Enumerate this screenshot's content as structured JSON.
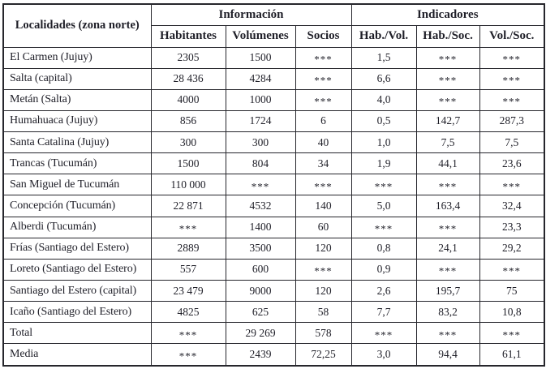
{
  "colors": {
    "background": "#ffffff",
    "text": "#1f1f28",
    "border": "#26262c"
  },
  "chart_data": {
    "type": "table",
    "row_header": "Localidades (zona norte)",
    "missing_marker": "***",
    "column_groups": [
      {
        "label": "Información",
        "columns": [
          "Habitantes",
          "Volúmenes",
          "Socios"
        ]
      },
      {
        "label": "Indicadores",
        "columns": [
          "Hab./Vol.",
          "Hab./Soc.",
          "Vol./Soc."
        ]
      }
    ],
    "rows": [
      {
        "name": "El Carmen (Jujuy)",
        "values": [
          "2305",
          "1500",
          "***",
          "1,5",
          "***",
          "***"
        ]
      },
      {
        "name": "Salta (capital)",
        "values": [
          "28 436",
          "4284",
          "***",
          "6,6",
          "***",
          "***"
        ]
      },
      {
        "name": "Metán (Salta)",
        "values": [
          "4000",
          "1000",
          "***",
          "4,0",
          "***",
          "***"
        ]
      },
      {
        "name": "Humahuaca (Jujuy)",
        "values": [
          "856",
          "1724",
          "6",
          "0,5",
          "142,7",
          "287,3"
        ]
      },
      {
        "name": "Santa Catalina (Jujuy)",
        "values": [
          "300",
          "300",
          "40",
          "1,0",
          "7,5",
          "7,5"
        ]
      },
      {
        "name": "Trancas (Tucumán)",
        "values": [
          "1500",
          "804",
          "34",
          "1,9",
          "44,1",
          "23,6"
        ]
      },
      {
        "name": "San Miguel de Tucumán",
        "values": [
          "110 000",
          "***",
          "***",
          "***",
          "***",
          "***"
        ]
      },
      {
        "name": "Concepción (Tucumán)",
        "values": [
          "22 871",
          "4532",
          "140",
          "5,0",
          "163,4",
          "32,4"
        ]
      },
      {
        "name": "Alberdi (Tucumán)",
        "values": [
          "***",
          "1400",
          "60",
          "***",
          "***",
          "23,3"
        ]
      },
      {
        "name": "Frías (Santiago del Estero)",
        "values": [
          "2889",
          "3500",
          "120",
          "0,8",
          "24,1",
          "29,2"
        ]
      },
      {
        "name": "Loreto (Santiago del Estero)",
        "values": [
          "557",
          "600",
          "***",
          "0,9",
          "***",
          "***"
        ]
      },
      {
        "name": "Santiago del Estero (capital)",
        "values": [
          "23 479",
          "9000",
          "120",
          "2,6",
          "195,7",
          "75"
        ]
      },
      {
        "name": "Icaño (Santiago del Estero)",
        "values": [
          "4825",
          "625",
          "58",
          "7,7",
          "83,2",
          "10,8"
        ]
      },
      {
        "name": "Total",
        "values": [
          "***",
          "29 269",
          "578",
          "***",
          "***",
          "***"
        ]
      },
      {
        "name": "Media",
        "values": [
          "***",
          "2439",
          "72,25",
          "3,0",
          "94,4",
          "61,1"
        ]
      }
    ]
  }
}
